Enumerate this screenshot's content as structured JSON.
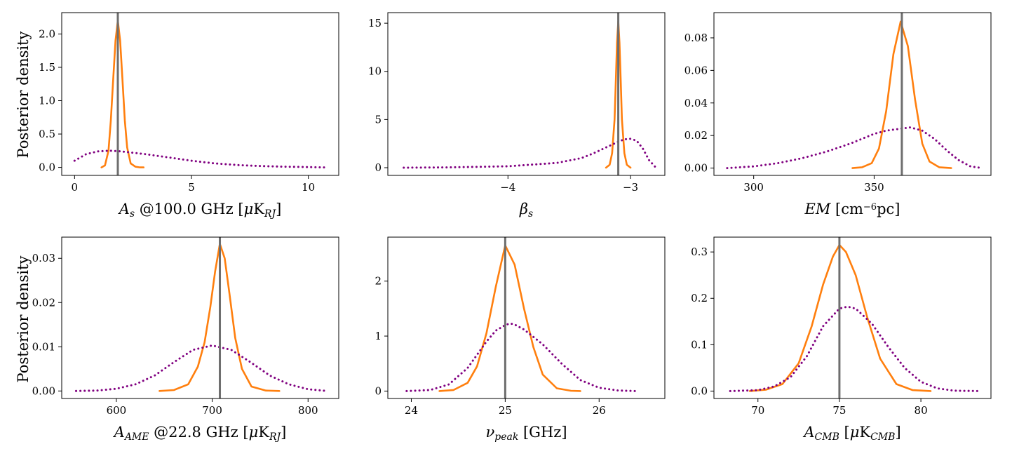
{
  "ylabel": "Posterior density",
  "chart_data": [
    {
      "type": "line",
      "xlabel_parts": [
        {
          "t": "A",
          "i": true
        },
        {
          "t": "s",
          "i": true,
          "sub": true
        },
        {
          "t": " @100.0 GHz [",
          "i": false
        },
        {
          "t": "μ",
          "i": true
        },
        {
          "t": "K",
          "i": false
        },
        {
          "t": "RJ",
          "i": true,
          "sub": true
        },
        {
          "t": "]",
          "i": false
        }
      ],
      "xlim": [
        -0.55,
        11.3
      ],
      "ylim": [
        -0.12,
        2.32
      ],
      "xticks": [
        0,
        5,
        10
      ],
      "xtick_labels": [
        "0",
        "5",
        "10"
      ],
      "yticks": [
        0,
        0.5,
        1.0,
        1.5,
        2.0
      ],
      "ytick_labels": [
        "0.0",
        "0.5",
        "1.0",
        "1.5",
        "2.0"
      ],
      "truth": 1.85,
      "series": [
        {
          "style": "posterior-solid",
          "color": "#ff7f0e",
          "x": [
            1.15,
            1.3,
            1.45,
            1.55,
            1.65,
            1.75,
            1.85,
            1.95,
            2.05,
            2.15,
            2.25,
            2.4,
            2.6,
            2.8,
            2.95
          ],
          "y": [
            0,
            0.03,
            0.25,
            0.7,
            1.3,
            1.9,
            2.2,
            1.9,
            1.3,
            0.7,
            0.3,
            0.06,
            0.01,
            0,
            0
          ]
        },
        {
          "style": "prior-dotted",
          "color": "#800080",
          "x": [
            0,
            0.5,
            1,
            1.5,
            2,
            3,
            4,
            5,
            6,
            7,
            8,
            9,
            10,
            10.7
          ],
          "y": [
            0.1,
            0.2,
            0.24,
            0.25,
            0.24,
            0.2,
            0.15,
            0.1,
            0.06,
            0.035,
            0.02,
            0.01,
            0.005,
            0
          ]
        }
      ]
    },
    {
      "type": "line",
      "xlabel_parts": [
        {
          "t": "β",
          "i": true
        },
        {
          "t": "s",
          "i": true,
          "sub": true
        }
      ],
      "xlim": [
        -4.98,
        -2.72
      ],
      "ylim": [
        -0.8,
        16.1
      ],
      "xticks": [
        -4,
        -3
      ],
      "xtick_labels": [
        "−4",
        "−3"
      ],
      "yticks": [
        0,
        5,
        10,
        15
      ],
      "ytick_labels": [
        "0",
        "5",
        "10",
        "15"
      ],
      "truth": -3.1,
      "series": [
        {
          "style": "posterior-solid",
          "color": "#ff7f0e",
          "x": [
            -3.2,
            -3.17,
            -3.15,
            -3.13,
            -3.12,
            -3.11,
            -3.1,
            -3.09,
            -3.08,
            -3.07,
            -3.05,
            -3.03,
            -3.0
          ],
          "y": [
            0,
            0.3,
            1.5,
            5,
            9,
            13,
            15.2,
            13,
            9,
            5,
            1.5,
            0.3,
            0
          ]
        },
        {
          "style": "prior-dotted",
          "color": "#800080",
          "x": [
            -4.85,
            -4.5,
            -4.0,
            -3.6,
            -3.4,
            -3.3,
            -3.2,
            -3.1,
            -3.05,
            -3.0,
            -2.95,
            -2.9,
            -2.85,
            -2.8
          ],
          "y": [
            0,
            0.03,
            0.15,
            0.5,
            1.0,
            1.5,
            2.1,
            2.7,
            2.95,
            3.0,
            2.8,
            2.0,
            0.8,
            0.1
          ]
        }
      ]
    },
    {
      "type": "line",
      "xlabel_parts": [
        {
          "t": "EM",
          "i": true
        },
        {
          "t": " [cm",
          "i": false
        },
        {
          "t": "−6",
          "i": false,
          "sup": true
        },
        {
          "t": "pc]",
          "i": false
        }
      ],
      "xlim": [
        283.5,
        398.5
      ],
      "ylim": [
        -0.0045,
        0.0955
      ],
      "xticks": [
        300,
        350
      ],
      "xtick_labels": [
        "300",
        "350"
      ],
      "yticks": [
        0,
        0.02,
        0.04,
        0.06,
        0.08
      ],
      "ytick_labels": [
        "0.00",
        "0.02",
        "0.04",
        "0.06",
        "0.08"
      ],
      "truth": 361.5,
      "series": [
        {
          "style": "posterior-solid",
          "color": "#ff7f0e",
          "x": [
            341,
            345,
            349,
            352,
            355,
            358,
            361,
            364,
            367,
            370,
            373,
            377,
            382
          ],
          "y": [
            0,
            0.0005,
            0.003,
            0.012,
            0.035,
            0.07,
            0.09,
            0.075,
            0.042,
            0.015,
            0.004,
            0.0005,
            0
          ]
        },
        {
          "style": "prior-dotted",
          "color": "#800080",
          "x": [
            289,
            300,
            310,
            320,
            330,
            340,
            350,
            355,
            360,
            365,
            370,
            375,
            380,
            385,
            390,
            395
          ],
          "y": [
            0,
            0.001,
            0.003,
            0.006,
            0.01,
            0.015,
            0.021,
            0.023,
            0.024,
            0.025,
            0.023,
            0.018,
            0.011,
            0.005,
            0.001,
            0
          ]
        }
      ]
    },
    {
      "type": "line",
      "xlabel_parts": [
        {
          "t": "A",
          "i": true
        },
        {
          "t": "AME",
          "i": true,
          "sub": true
        },
        {
          "t": " @22.8 GHz [",
          "i": false
        },
        {
          "t": "μ",
          "i": true
        },
        {
          "t": "K",
          "i": false
        },
        {
          "t": "RJ",
          "i": true,
          "sub": true
        },
        {
          "t": "]",
          "i": false
        }
      ],
      "xlim": [
        543,
        832
      ],
      "ylim": [
        -0.0017,
        0.0348
      ],
      "xticks": [
        600,
        700,
        800
      ],
      "xtick_labels": [
        "600",
        "700",
        "800"
      ],
      "yticks": [
        0,
        0.01,
        0.02,
        0.03
      ],
      "ytick_labels": [
        "0.00",
        "0.01",
        "0.02",
        "0.03"
      ],
      "truth": 708,
      "series": [
        {
          "style": "posterior-solid",
          "color": "#ff7f0e",
          "x": [
            645,
            660,
            675,
            685,
            692,
            698,
            703,
            708,
            713,
            718,
            724,
            731,
            741,
            756,
            770
          ],
          "y": [
            0,
            0.0002,
            0.0015,
            0.0055,
            0.011,
            0.019,
            0.027,
            0.0333,
            0.03,
            0.022,
            0.012,
            0.005,
            0.001,
            0.0001,
            0
          ]
        },
        {
          "style": "prior-dotted",
          "color": "#800080",
          "x": [
            558,
            580,
            600,
            620,
            640,
            660,
            680,
            700,
            720,
            740,
            760,
            780,
            800,
            820
          ],
          "y": [
            0,
            0.0001,
            0.0005,
            0.0015,
            0.0035,
            0.0065,
            0.0093,
            0.0103,
            0.0093,
            0.0065,
            0.0035,
            0.0015,
            0.0004,
            0
          ]
        }
      ]
    },
    {
      "type": "line",
      "xlabel_parts": [
        {
          "t": "ν",
          "i": true
        },
        {
          "t": "peak",
          "i": true,
          "sub": true
        },
        {
          "t": " [GHz]",
          "i": false
        }
      ],
      "xlim": [
        23.75,
        26.7
      ],
      "ylim": [
        -0.135,
        2.8
      ],
      "xticks": [
        24,
        25,
        26
      ],
      "xtick_labels": [
        "24",
        "25",
        "26"
      ],
      "yticks": [
        0,
        1,
        2
      ],
      "ytick_labels": [
        "0",
        "1",
        "2"
      ],
      "truth": 25.0,
      "series": [
        {
          "style": "posterior-solid",
          "color": "#ff7f0e",
          "x": [
            24.3,
            24.45,
            24.6,
            24.7,
            24.8,
            24.9,
            25.0,
            25.1,
            25.2,
            25.3,
            25.4,
            25.55,
            25.7,
            25.8
          ],
          "y": [
            0,
            0.02,
            0.15,
            0.45,
            1.05,
            1.9,
            2.65,
            2.3,
            1.5,
            0.8,
            0.3,
            0.05,
            0.005,
            0
          ]
        },
        {
          "style": "prior-dotted",
          "color": "#800080",
          "x": [
            23.95,
            24.2,
            24.4,
            24.6,
            24.8,
            24.9,
            25.0,
            25.05,
            25.1,
            25.2,
            25.4,
            25.6,
            25.8,
            26.0,
            26.2,
            26.4
          ],
          "y": [
            0,
            0.02,
            0.12,
            0.42,
            0.9,
            1.1,
            1.2,
            1.23,
            1.21,
            1.12,
            0.85,
            0.5,
            0.2,
            0.06,
            0.01,
            0
          ]
        }
      ]
    },
    {
      "type": "line",
      "xlabel_parts": [
        {
          "t": "A",
          "i": true
        },
        {
          "t": "CMB",
          "i": true,
          "sub": true
        },
        {
          "t": " [",
          "i": false
        },
        {
          "t": "μ",
          "i": true
        },
        {
          "t": "K",
          "i": false
        },
        {
          "t": "CMB",
          "i": true,
          "sub": true
        },
        {
          "t": "]",
          "i": false
        }
      ],
      "xlim": [
        67.3,
        84.3
      ],
      "ylim": [
        -0.016,
        0.332
      ],
      "xticks": [
        70,
        75,
        80
      ],
      "xtick_labels": [
        "70",
        "75",
        "80"
      ],
      "yticks": [
        0,
        0.1,
        0.2,
        0.3
      ],
      "ytick_labels": [
        "0.0",
        "0.1",
        "0.2",
        "0.3"
      ],
      "truth": 75.0,
      "series": [
        {
          "style": "posterior-solid",
          "color": "#ff7f0e",
          "x": [
            69.5,
            70.5,
            71.5,
            72.5,
            73.3,
            74,
            74.6,
            75,
            75.4,
            76,
            76.7,
            77.5,
            78.5,
            79.5,
            80.6
          ],
          "y": [
            0,
            0.003,
            0.015,
            0.06,
            0.14,
            0.23,
            0.29,
            0.315,
            0.3,
            0.25,
            0.16,
            0.07,
            0.015,
            0.002,
            0
          ]
        },
        {
          "style": "prior-dotted",
          "color": "#800080",
          "x": [
            68.3,
            70,
            71,
            72,
            73,
            74,
            75,
            75.5,
            76,
            77,
            78,
            79,
            80,
            81,
            82,
            83.5
          ],
          "y": [
            0,
            0.002,
            0.01,
            0.03,
            0.075,
            0.14,
            0.178,
            0.182,
            0.178,
            0.145,
            0.095,
            0.05,
            0.02,
            0.006,
            0.001,
            0
          ]
        }
      ]
    }
  ]
}
